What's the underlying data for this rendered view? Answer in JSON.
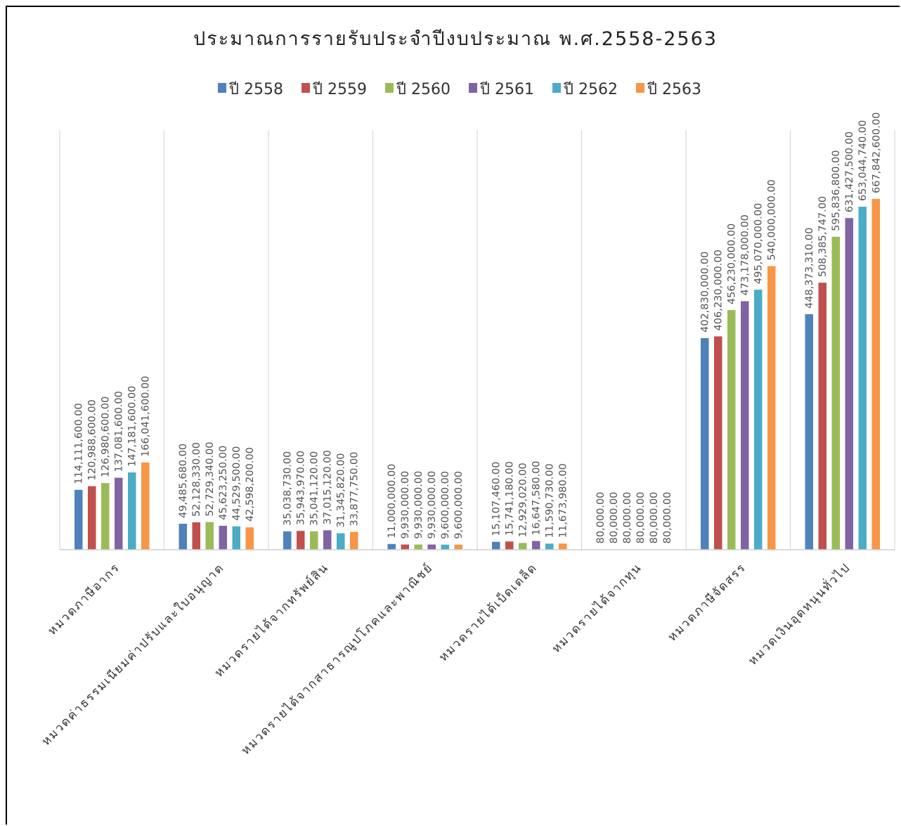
{
  "chart_data": {
    "type": "bar",
    "title": "ประมาณการรายรับประจำปีงบประมาณ พ.ศ.2558-2563",
    "legend_position": "top",
    "grid": "vertical-category-separators",
    "ylim": [
      0,
      700000000
    ],
    "categories": [
      "หมวดภาษีอากร",
      "หมวดค่าธรรมเนียมค่าปรับและใบอนุญาต",
      "หมวดรายได้จากทรัพย์สิน",
      "หมวดรายได้จากสาธารณูปโภคและพาณิชย์",
      "หมวดรายได้เบ็ดเตล็ด",
      "หมวดรายได้จากทุน",
      "หมวดภาษีจัดสรร",
      "หมวดเงินอุดหนุนทั่วไป"
    ],
    "series": [
      {
        "name": "ปี 2558",
        "color": "#4F81BD",
        "values": [
          114111600,
          49485680,
          35038730,
          11000000,
          15107460,
          80000,
          402830000,
          448373310
        ],
        "labels": [
          "114,111,600.00",
          "49,485,680.00",
          "35,038,730.00",
          "11,000,000.00",
          "15,107,460.00",
          "80,000.00",
          "402,830,000.00",
          "448,373,310.00"
        ]
      },
      {
        "name": "ปี 2559",
        "color": "#C0504D",
        "values": [
          120988600,
          52128330,
          35943970,
          9930000,
          15741180,
          80000,
          406230000,
          508385747
        ],
        "labels": [
          "120,988,600.00",
          "52,128,330.00",
          "35,943,970.00",
          "9,930,000.00",
          "15,741,180.00",
          "80,000.00",
          "406,230,000.00",
          "508,385,747.00"
        ]
      },
      {
        "name": "ปี 2560",
        "color": "#9BBB59",
        "values": [
          126980600,
          52729340,
          35041120,
          9930000,
          12929020,
          80000,
          456230000,
          595836800
        ],
        "labels": [
          "126,980,600.00",
          "52,729,340.00",
          "35,041,120.00",
          "9,930,000.00",
          "12,929,020.00",
          "80,000.00",
          "456,230,000.00",
          "595,836,800.00"
        ]
      },
      {
        "name": "ปี 2561",
        "color": "#8064A2",
        "values": [
          137081600,
          45623250,
          37015120,
          9930000,
          16647580,
          80000,
          473178000,
          631427500
        ],
        "labels": [
          "137,081,600.00",
          "45,623,250.00",
          "37,015,120.00",
          "9,930,000.00",
          "16,647,580.00",
          "80,000.00",
          "473,178,000.00",
          "631,427,500.00"
        ]
      },
      {
        "name": "ปี 2562",
        "color": "#4BACC6",
        "values": [
          147181600,
          44529500,
          31345820,
          9600000,
          11590730,
          80000,
          495070000,
          653044740
        ],
        "labels": [
          "147,181,600.00",
          "44,529,500.00",
          "31,345,820.00",
          "9,600,000.00",
          "11,590,730.00",
          "80,000.00",
          "495,070,000.00",
          "653,044,740.00"
        ]
      },
      {
        "name": "ปี 2563",
        "color": "#F79646",
        "values": [
          166041600,
          42598200,
          33877750,
          9600000,
          11673980,
          80000,
          540000000,
          667842600
        ],
        "labels": [
          "166,041,600.00",
          "42,598,200.00",
          "33,877,750.00",
          "9,600,000.00",
          "11,673,980.00",
          "80,000.00",
          "540,000,000.00",
          "667,842,600.00"
        ]
      }
    ]
  }
}
